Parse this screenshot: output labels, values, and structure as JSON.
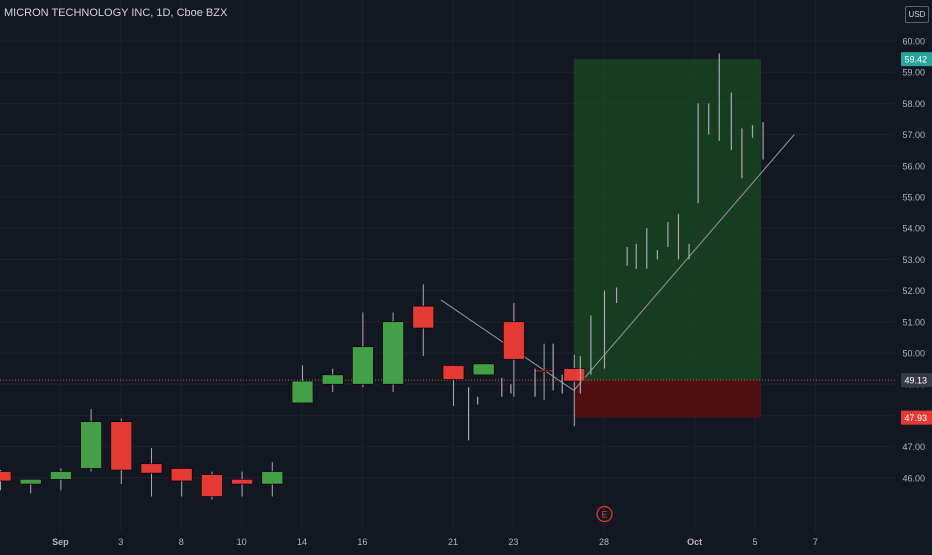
{
  "header": {
    "symbol_title": "MICRON TECHNOLOGY INC, 1D, Cboe BZX",
    "currency": "USD"
  },
  "colors": {
    "background": "#131722",
    "grid": "#1e222d",
    "axis_text": "#b2b5be",
    "up": "#43a047",
    "down": "#e53935",
    "wick": "#a7a9b0",
    "trendline": "#9598a1",
    "target_zone": "#1b4d1f",
    "stop_zone": "#5a0f12",
    "entry_line": "#e0533a",
    "target_label_bg": "#26a69a",
    "stop_label_bg": "#e53935",
    "entry_label_bg": "#363a45"
  },
  "chart_data": {
    "type": "candlestick",
    "title": "MICRON TECHNOLOGY INC, 1D, Cboe BZX",
    "y_axis": {
      "side": "right",
      "range": [
        45.5,
        61.0
      ],
      "ticks": [
        "46.00",
        "47.00",
        "48.00",
        "49.00",
        "50.00",
        "51.00",
        "52.00",
        "53.00",
        "54.00",
        "55.00",
        "56.00",
        "57.00",
        "58.00",
        "59.00",
        "60.00"
      ]
    },
    "x_axis": {
      "ticks": [
        {
          "label": "Sep",
          "bold": true,
          "at": 2
        },
        {
          "label": "3",
          "at": 4
        },
        {
          "label": "8",
          "at": 6
        },
        {
          "label": "10",
          "at": 8
        },
        {
          "label": "14",
          "at": 10
        },
        {
          "label": "16",
          "at": 12
        },
        {
          "label": "21",
          "at": 15
        },
        {
          "label": "23",
          "at": 17
        },
        {
          "label": "28",
          "at": 20
        },
        {
          "label": "Oct",
          "bold": true,
          "at": 23
        },
        {
          "label": "5",
          "at": 25
        },
        {
          "label": "7",
          "at": 27
        }
      ]
    },
    "candles": [
      {
        "t": 0,
        "o": 46.2,
        "h": 46.25,
        "l": 45.6,
        "c": 45.9
      },
      {
        "t": 1,
        "o": 45.8,
        "h": 45.95,
        "l": 45.5,
        "c": 45.95
      },
      {
        "t": 2,
        "o": 45.95,
        "h": 46.3,
        "l": 45.6,
        "c": 46.2
      },
      {
        "t": 3,
        "o": 46.3,
        "h": 48.2,
        "l": 46.2,
        "c": 47.8
      },
      {
        "t": 4,
        "o": 47.8,
        "h": 47.9,
        "l": 45.8,
        "c": 46.25
      },
      {
        "t": 5,
        "o": 46.45,
        "h": 46.95,
        "l": 45.4,
        "c": 46.15
      },
      {
        "t": 6,
        "o": 46.3,
        "h": 46.3,
        "l": 45.4,
        "c": 45.9
      },
      {
        "t": 7,
        "o": 46.1,
        "h": 46.2,
        "l": 45.3,
        "c": 45.4
      },
      {
        "t": 8,
        "o": 45.95,
        "h": 46.2,
        "l": 45.4,
        "c": 45.8
      },
      {
        "t": 9,
        "o": 45.8,
        "h": 46.5,
        "l": 45.4,
        "c": 46.2
      },
      {
        "t": 10,
        "o": 48.4,
        "h": 49.6,
        "l": 48.4,
        "c": 49.1
      },
      {
        "t": 11,
        "o": 49.0,
        "h": 49.5,
        "l": 48.75,
        "c": 49.3
      },
      {
        "t": 12,
        "o": 49.0,
        "h": 51.3,
        "l": 48.9,
        "c": 50.2
      },
      {
        "t": 13,
        "o": 49.0,
        "h": 51.3,
        "l": 48.75,
        "c": 51.0
      },
      {
        "t": 14,
        "o": 51.5,
        "h": 52.2,
        "l": 49.9,
        "c": 50.8
      },
      {
        "t": 15,
        "o": 49.6,
        "h": 49.6,
        "l": 48.3,
        "c": 49.15
      },
      {
        "t": 16,
        "o": 49.3,
        "h": 49.65,
        "l": 49.3,
        "c": 49.65
      },
      {
        "t": 17,
        "o": 51.0,
        "h": 51.6,
        "l": 48.6,
        "c": 49.8
      },
      {
        "t": 18,
        "o": 49.45,
        "h": 50.3,
        "l": 48.5,
        "c": 49.4
      },
      {
        "t": 19,
        "o": 49.5,
        "h": 49.95,
        "l": 47.65,
        "c": 49.1
      }
    ],
    "bars": [
      {
        "t": 15.5,
        "h": 48.9,
        "l": 47.2
      },
      {
        "t": 15.8,
        "h": 48.6,
        "l": 48.35
      },
      {
        "t": 16.6,
        "h": 49.2,
        "l": 48.6
      },
      {
        "t": 16.9,
        "h": 49.0,
        "l": 48.7
      },
      {
        "t": 17.7,
        "h": 49.5,
        "l": 48.6
      },
      {
        "t": 18.3,
        "h": 50.3,
        "l": 48.8
      },
      {
        "t": 18.6,
        "h": 49.3,
        "l": 48.7
      },
      {
        "t": 19.2,
        "h": 49.9,
        "l": 48.7
      },
      {
        "t": 19.55,
        "h": 51.2,
        "l": 49.3
      },
      {
        "t": 20.0,
        "h": 52.0,
        "l": 49.5
      },
      {
        "t": 20.4,
        "h": 52.1,
        "l": 51.6
      },
      {
        "t": 20.75,
        "h": 53.4,
        "l": 52.8
      },
      {
        "t": 21.05,
        "h": 53.5,
        "l": 52.7
      },
      {
        "t": 21.4,
        "h": 54.0,
        "l": 52.7
      },
      {
        "t": 21.75,
        "h": 53.3,
        "l": 53.0
      },
      {
        "t": 22.1,
        "h": 54.2,
        "l": 53.4
      },
      {
        "t": 22.45,
        "h": 54.45,
        "l": 53.0
      },
      {
        "t": 22.8,
        "h": 53.5,
        "l": 53.0
      },
      {
        "t": 23.1,
        "h": 58.0,
        "l": 54.8
      },
      {
        "t": 23.45,
        "h": 58.0,
        "l": 57.0
      },
      {
        "t": 23.8,
        "h": 59.6,
        "l": 56.8
      },
      {
        "t": 24.2,
        "h": 58.35,
        "l": 56.5
      },
      {
        "t": 24.55,
        "h": 57.2,
        "l": 55.6
      },
      {
        "t": 24.9,
        "h": 57.3,
        "l": 56.9
      },
      {
        "t": 25.25,
        "h": 57.4,
        "l": 56.2
      }
    ],
    "trendlines": [
      {
        "from": {
          "t": 14.6,
          "p": 51.7
        },
        "to": {
          "t": 19.0,
          "p": 48.8
        }
      },
      {
        "from": {
          "t": 19.0,
          "p": 48.8
        },
        "to": {
          "t": 26.3,
          "p": 57.0
        }
      }
    ],
    "position": {
      "entry": 49.13,
      "target": 59.42,
      "stop": 47.93,
      "from_t": 19.0,
      "to_t": 25.2
    },
    "price_labels": [
      {
        "value": "59.42",
        "kind": "target"
      },
      {
        "value": "49.13",
        "kind": "entry"
      },
      {
        "value": "47.93",
        "kind": "stop"
      }
    ],
    "event_marker": {
      "label": "E",
      "t": 20.0
    },
    "grid": true,
    "legend": "none"
  }
}
